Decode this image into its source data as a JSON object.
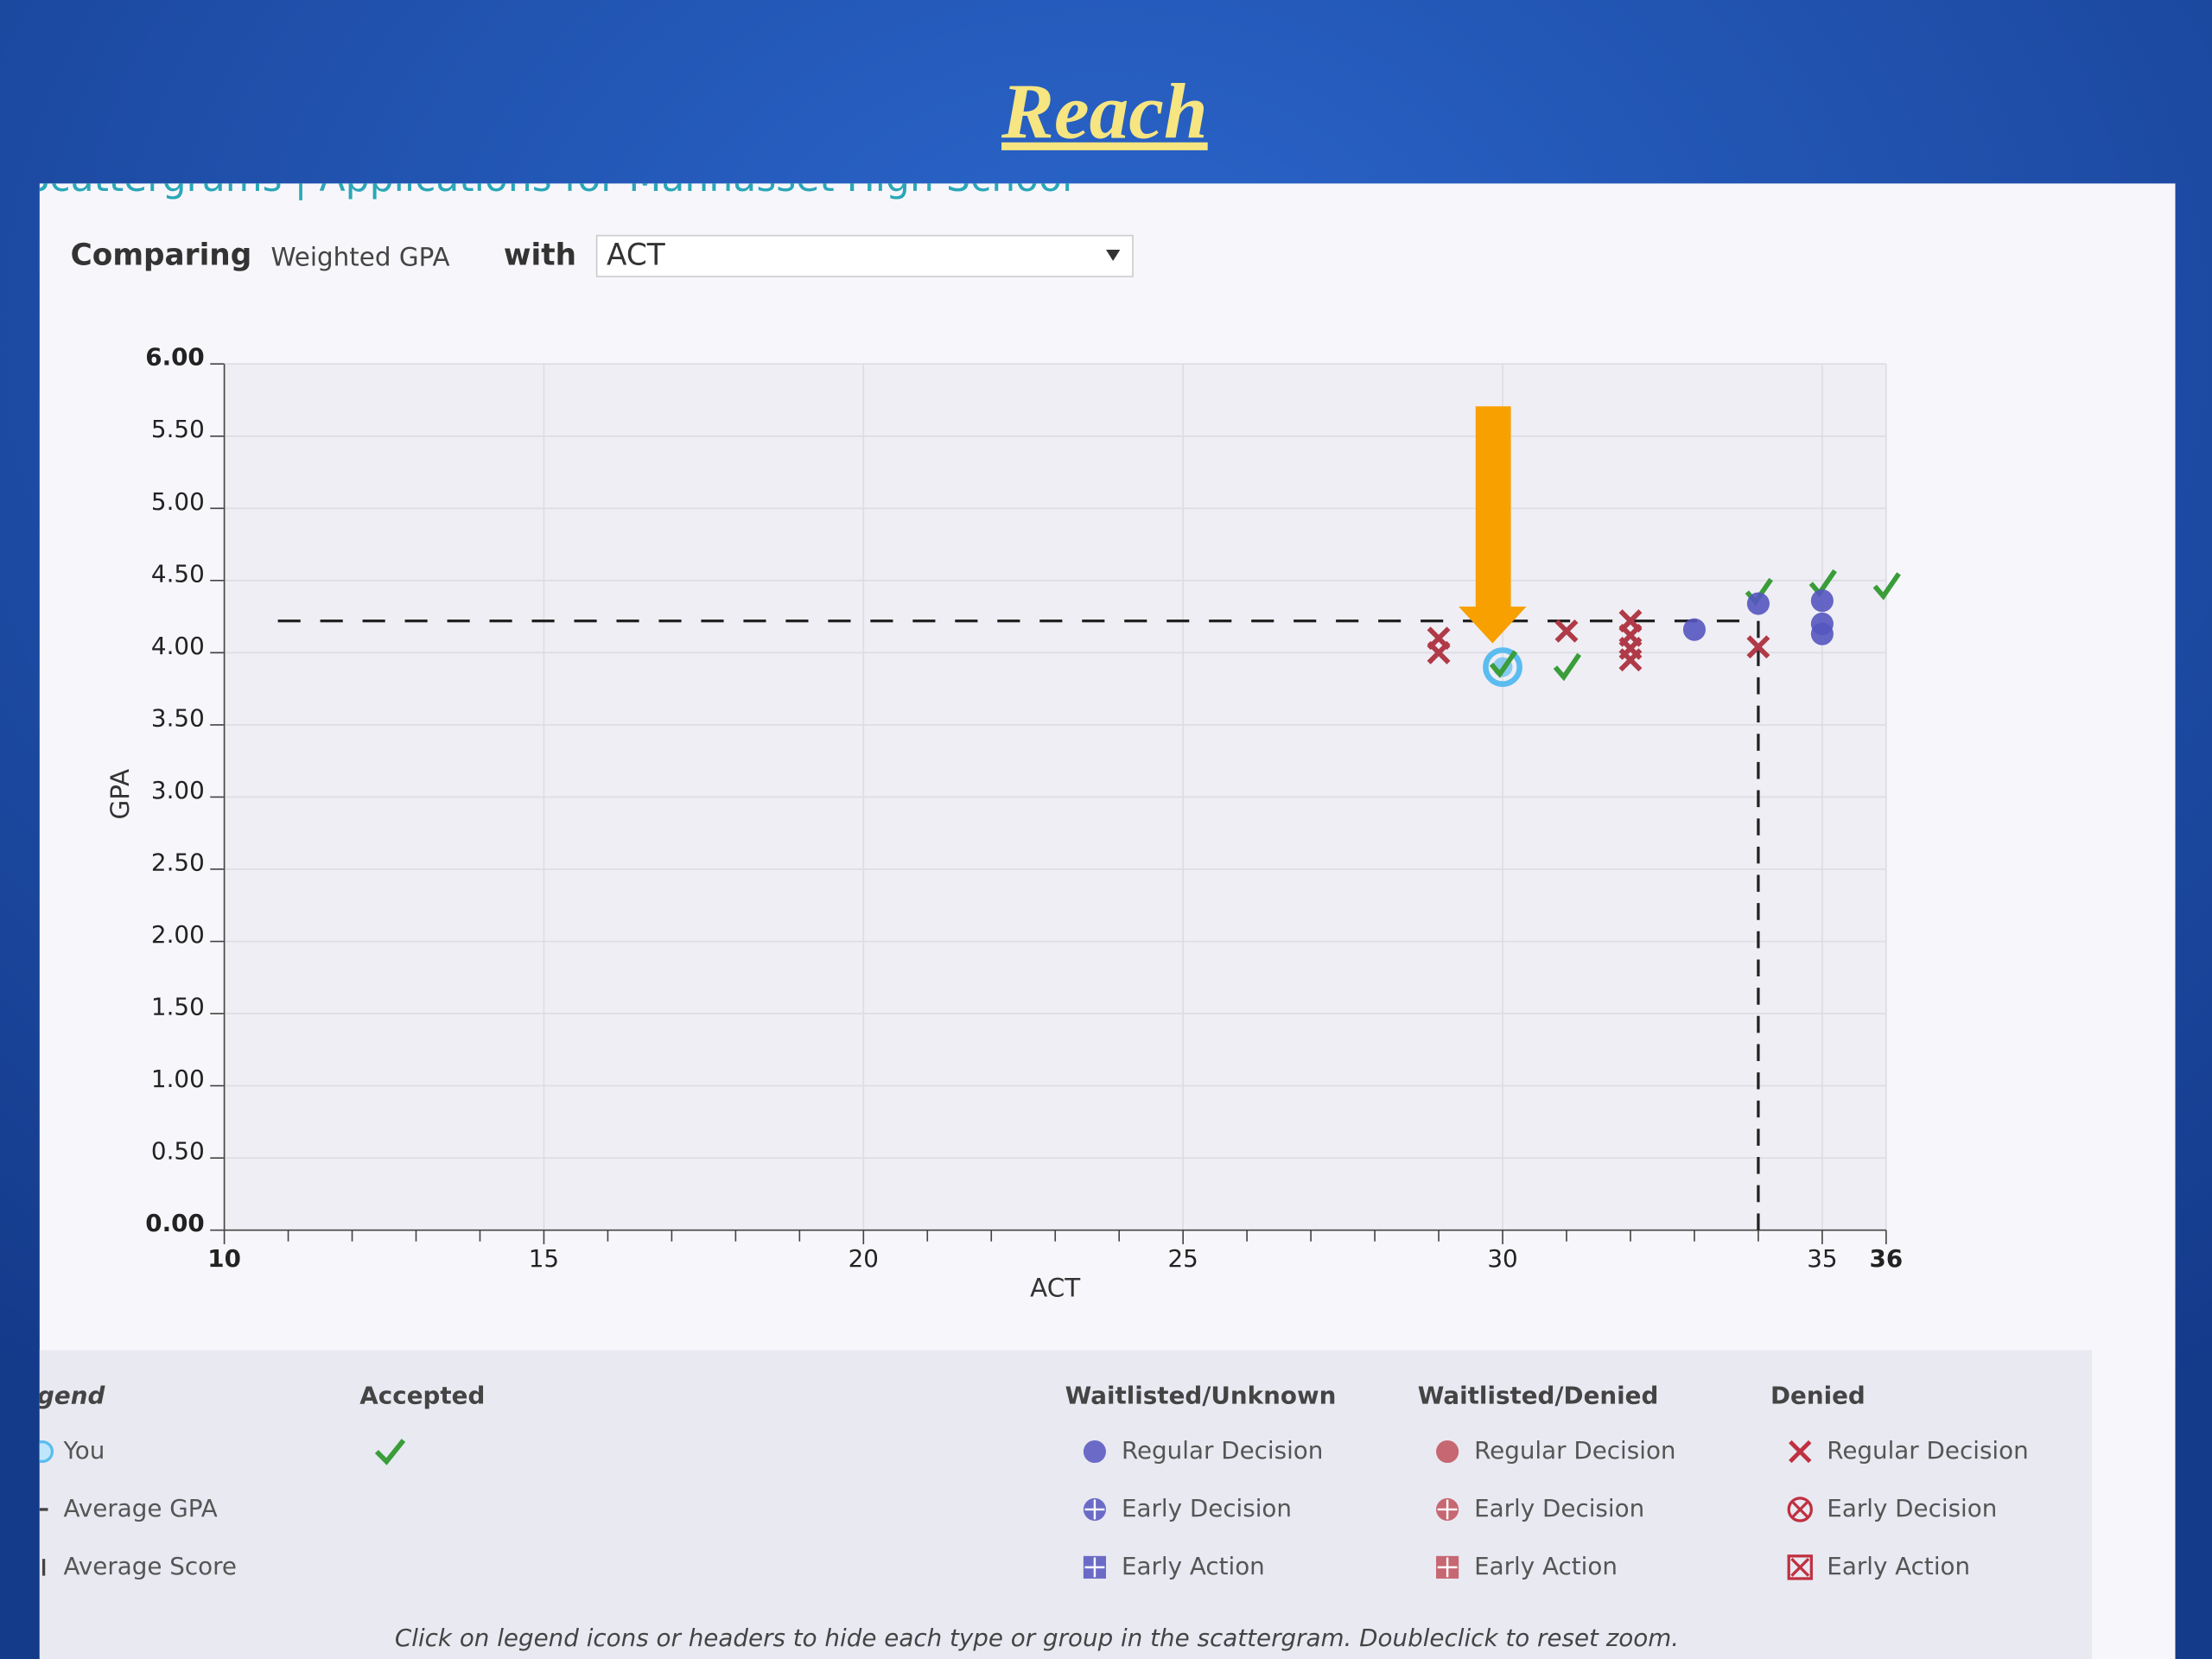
{
  "slide_title": "Reach",
  "header": {
    "heading": "Scattergrams | Applications for Manhasset High School",
    "comparing": "Comparing",
    "measure": "Weighted GPA",
    "with": "with",
    "selected": "ACT"
  },
  "chart_data": {
    "type": "scatter",
    "x_label": "ACT",
    "y_label": "GPA",
    "xlim": [
      10,
      36
    ],
    "ylim": [
      0,
      6
    ],
    "xticks": [
      10,
      15,
      20,
      25,
      30,
      35,
      36
    ],
    "xminor_ticks": [
      11,
      12,
      13,
      14,
      16,
      17,
      18,
      19,
      21,
      22,
      23,
      24,
      26,
      27,
      28,
      29,
      31,
      32,
      33,
      34
    ],
    "yticks": [
      {
        "value": 0,
        "label": "0.00"
      },
      {
        "value": 0.5,
        "label": "0.50"
      },
      {
        "value": 1,
        "label": "1.00"
      },
      {
        "value": 1.5,
        "label": "1.50"
      },
      {
        "value": 2,
        "label": "2.00"
      },
      {
        "value": 2.5,
        "label": "2.50"
      },
      {
        "value": 3,
        "label": "3.00"
      },
      {
        "value": 3.5,
        "label": "3.50"
      },
      {
        "value": 4,
        "label": "4.00"
      },
      {
        "value": 4.5,
        "label": "4.50"
      },
      {
        "value": 5,
        "label": "5.00"
      },
      {
        "value": 5.5,
        "label": "5.50"
      },
      {
        "value": 6,
        "label": "6.00"
      }
    ],
    "grid": true,
    "average_gpa": 4.22,
    "average_score": 34,
    "series": [
      {
        "marker": "you",
        "color": "#5bbcf0",
        "x": [
          30
        ],
        "values": [
          3.9
        ]
      },
      {
        "marker": "check",
        "color": "#3a9d3a",
        "x": [
          30,
          31,
          34,
          35,
          36
        ],
        "values": [
          3.92,
          3.9,
          4.42,
          4.48,
          4.46
        ]
      },
      {
        "marker": "circle",
        "color": "#5555c0",
        "x": [
          33,
          34,
          35,
          35,
          35
        ],
        "values": [
          4.16,
          4.34,
          4.36,
          4.2,
          4.13
        ]
      },
      {
        "marker": "x",
        "color": "#b03a48",
        "x": [
          29,
          29,
          31,
          32,
          32,
          32,
          32,
          34
        ],
        "values": [
          4.1,
          4.0,
          4.15,
          4.22,
          4.12,
          4.03,
          3.95,
          4.04
        ]
      }
    ]
  },
  "legend": {
    "title": "Legend",
    "items": [
      "You",
      "Average GPA",
      "Average Score"
    ],
    "groups": [
      {
        "name": "Accepted",
        "items": []
      },
      {
        "name": "Waitlisted/Unknown",
        "color": "#5555c0",
        "items": [
          "Regular Decision",
          "Early Decision",
          "Early Action"
        ]
      },
      {
        "name": "Waitlisted/Denied",
        "color": "#c0505a",
        "items": [
          "Regular Decision",
          "Early Decision",
          "Early Action"
        ]
      },
      {
        "name": "Denied",
        "color": "#c03040",
        "items": [
          "Regular Decision",
          "Early Decision",
          "Early Action"
        ]
      }
    ]
  },
  "footnote": "Click on legend icons or headers to hide each type or group in the scattergram. Doubleclick to reset zoom."
}
